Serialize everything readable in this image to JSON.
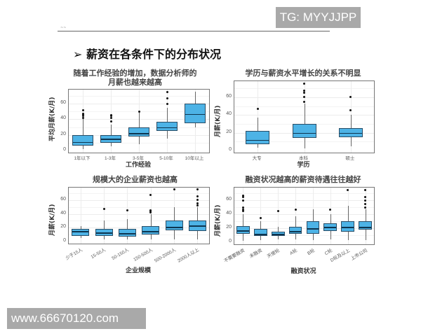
{
  "watermarks": {
    "top_right": "TG: MYYJJPP",
    "bottom_left": "www.66670120.com"
  },
  "header": {
    "mark": "~~",
    "section_title": "➢ 薪资在各条件下的分布状况"
  },
  "chart_data": [
    {
      "type": "boxplot",
      "title": "随着工作经验的增加，数据分析师的\n月薪也越来越高",
      "title_line1": "随着工作经验的增加，数据分析师的",
      "title_line2": "月薪也越来越高",
      "xlabel": "工作经验",
      "ylabel": "平均月薪(K/月)",
      "ylim": [
        0,
        75
      ],
      "yticks": [
        0,
        20,
        40,
        60
      ],
      "categories": [
        "1年以下",
        "1-3年",
        "3-5年",
        "5-10年",
        "10年以上"
      ],
      "boxes": [
        {
          "min": 2,
          "q1": 6,
          "median": 11,
          "q3": 20,
          "max": 40,
          "outliers": [
            42,
            44,
            46,
            47,
            52
          ]
        },
        {
          "min": 5,
          "q1": 10,
          "median": 15,
          "q3": 20,
          "max": 33,
          "outliers": [
            37,
            42,
            44,
            45
          ]
        },
        {
          "min": 8,
          "q1": 18,
          "median": 22,
          "q3": 30,
          "max": 48,
          "outliers": [
            50
          ]
        },
        {
          "min": 15,
          "q1": 25,
          "median": 30,
          "q3": 37,
          "max": 55,
          "outliers": [
            60,
            67,
            75
          ]
        },
        {
          "min": 30,
          "q1": 35,
          "median": 47,
          "q3": 60,
          "max": 75,
          "outliers": []
        }
      ]
    },
    {
      "type": "boxplot",
      "title": "学历与薪资水平增长的关系不明显",
      "xlabel": "学历",
      "ylabel": "月薪(K/月)",
      "ylim": [
        0,
        75
      ],
      "yticks": [
        0,
        20,
        40,
        60
      ],
      "categories": [
        "大专",
        "本科",
        "硕士"
      ],
      "boxes": [
        {
          "min": 3,
          "q1": 7,
          "median": 12,
          "q3": 22,
          "max": 37,
          "outliers": [
            47
          ]
        },
        {
          "min": 2,
          "q1": 14,
          "median": 20,
          "q3": 30,
          "max": 53,
          "outliers": [
            55,
            60,
            65,
            67,
            75
          ]
        },
        {
          "min": 5,
          "q1": 15,
          "median": 20,
          "q3": 25,
          "max": 40,
          "outliers": [
            45,
            60
          ]
        }
      ]
    },
    {
      "type": "boxplot",
      "title": "规模大的企业薪资也越高",
      "xlabel": "企业规模",
      "ylabel": "月薪(K/月)",
      "ylim": [
        0,
        75
      ],
      "yticks": [
        0,
        20,
        40,
        60
      ],
      "categories": [
        "少于15人",
        "15-50人",
        "50-150人",
        "150-500人",
        "500-2000人",
        "2000人以上"
      ],
      "boxes": [
        {
          "min": 5,
          "q1": 8,
          "median": 15,
          "q3": 18,
          "max": 22,
          "outliers": []
        },
        {
          "min": 3,
          "q1": 8,
          "median": 13,
          "q3": 18,
          "max": 30,
          "outliers": [
            47
          ]
        },
        {
          "min": 3,
          "q1": 7,
          "median": 12,
          "q3": 18,
          "max": 32,
          "outliers": [
            45
          ]
        },
        {
          "min": 3,
          "q1": 10,
          "median": 15,
          "q3": 22,
          "max": 40,
          "outliers": [
            42,
            44,
            45,
            67
          ]
        },
        {
          "min": 3,
          "q1": 16,
          "median": 21,
          "q3": 30,
          "max": 50,
          "outliers": [
            75
          ]
        },
        {
          "min": 3,
          "q1": 15,
          "median": 23,
          "q3": 30,
          "max": 50,
          "outliers": [
            52,
            55,
            60,
            65,
            75
          ]
        }
      ]
    },
    {
      "type": "boxplot",
      "title": "融资状况越高的薪资待遇往往越好",
      "xlabel": "融资状况",
      "ylabel": "月薪(K/月)",
      "ylim": [
        0,
        75
      ],
      "yticks": [
        0,
        20,
        40,
        60
      ],
      "categories": [
        "不需要融资",
        "未融资",
        "天使轮",
        "A轮",
        "B轮",
        "C轮",
        "D轮及以上",
        "上市公司"
      ],
      "boxes": [
        {
          "min": 2,
          "q1": 12,
          "median": 17,
          "q3": 23,
          "max": 40,
          "outliers": [
            45,
            47,
            50,
            60,
            65,
            67
          ]
        },
        {
          "min": 3,
          "q1": 9,
          "median": 12,
          "q3": 19,
          "max": 30,
          "outliers": [
            35
          ]
        },
        {
          "min": 4,
          "q1": 9,
          "median": 12,
          "q3": 15,
          "max": 22,
          "outliers": [
            45
          ]
        },
        {
          "min": 4,
          "q1": 12,
          "median": 16,
          "q3": 22,
          "max": 37,
          "outliers": [
            47
          ]
        },
        {
          "min": 3,
          "q1": 12,
          "median": 20,
          "q3": 30,
          "max": 47,
          "outliers": []
        },
        {
          "min": 4,
          "q1": 16,
          "median": 22,
          "q3": 27,
          "max": 40,
          "outliers": [
            47
          ]
        },
        {
          "min": 3,
          "q1": 15,
          "median": 22,
          "q3": 30,
          "max": 52,
          "outliers": [
            75
          ]
        },
        {
          "min": 3,
          "q1": 18,
          "median": 22,
          "q3": 30,
          "max": 47,
          "outliers": [
            50,
            55,
            60,
            65,
            75
          ]
        }
      ]
    }
  ],
  "colors": {
    "box_fill": "#4db3e6",
    "box_border": "#2a4d66",
    "median": "#0d3550",
    "outlier": "#111111"
  }
}
